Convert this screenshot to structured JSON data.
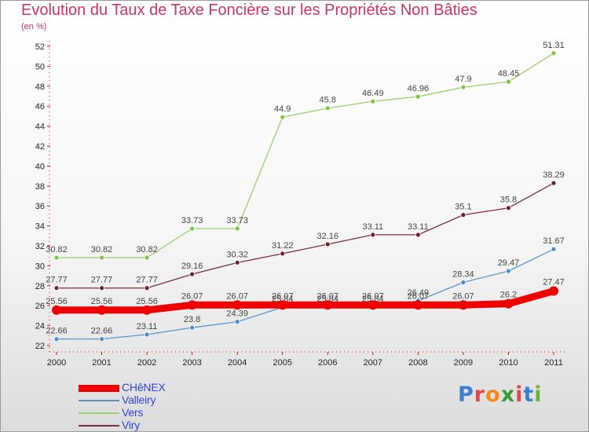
{
  "title": "Evolution du Taux de Taxe Foncière sur les Propriétés Non Bâties",
  "subtitle": "(en %)",
  "logo": {
    "text": "Proxiti",
    "letter_colors": [
      "#3a7fd0",
      "#e0484b",
      "#f28a1a",
      "#3a9a3c",
      "#e0484b",
      "#3a7fd0",
      "#6cb33e"
    ]
  },
  "chart_data": {
    "type": "line",
    "title": "Evolution du Taux de Taxe Foncière sur les Propriétés Non Bâties",
    "ylabel": "(en %)",
    "xlabel": "",
    "categories": [
      "2000",
      "2001",
      "2002",
      "2003",
      "2004",
      "2005",
      "2006",
      "2007",
      "2008",
      "2009",
      "2010",
      "2011"
    ],
    "ylim": [
      22,
      52
    ],
    "yticks": [
      22,
      24,
      26,
      28,
      30,
      32,
      34,
      36,
      38,
      40,
      42,
      44,
      46,
      48,
      50,
      52
    ],
    "grid": false,
    "legend_position": "bottom-left",
    "series": [
      {
        "name": "Valleiry",
        "color": "#5b93c9",
        "width": 1.3,
        "dot": "#4a8bd0",
        "values": [
          22.66,
          22.66,
          23.11,
          23.8,
          24.39,
          25.84,
          25.84,
          25.84,
          26.49,
          28.34,
          29.47,
          31.67
        ],
        "labels": [
          "22.66",
          "22.66",
          "23.11",
          "23.8",
          "24.39",
          "25.84",
          "25.84",
          "25.84",
          "26.49",
          "28.34",
          "29.47",
          "31.67"
        ]
      },
      {
        "name": "Vers",
        "color": "#9ad06a",
        "width": 1.3,
        "dot": "#7dc443",
        "values": [
          30.82,
          30.82,
          30.82,
          33.73,
          33.73,
          44.9,
          45.8,
          46.49,
          46.96,
          47.9,
          48.45,
          51.31
        ],
        "labels": [
          "30.82",
          "30.82",
          "30.82",
          "33.73",
          "33.73",
          "44.9",
          "45.8",
          "46.49",
          "46.96",
          "47.9",
          "48.45",
          "51.31"
        ]
      },
      {
        "name": "Viry",
        "color": "#7a2e3a",
        "width": 1.3,
        "dot": "#6b1f2a",
        "values": [
          27.77,
          27.77,
          27.77,
          29.16,
          30.32,
          31.22,
          32.16,
          33.11,
          33.11,
          35.1,
          35.8,
          38.29
        ],
        "labels": [
          "27.77",
          "27.77",
          "27.77",
          "29.16",
          "30.32",
          "31.22",
          "32.16",
          "33.11",
          "33.11",
          "35.1",
          "35.8",
          "38.29"
        ]
      },
      {
        "name": "CHêNEX",
        "color": "#ee0000",
        "width": 9,
        "dot": "#ee0000",
        "values": [
          25.56,
          25.56,
          25.56,
          26.07,
          26.07,
          26.07,
          26.07,
          26.07,
          26.07,
          26.07,
          26.2,
          27.47
        ],
        "labels": [
          "25.56",
          "25.56",
          "25.56",
          "26.07",
          "26.07",
          "26.07",
          "26.07",
          "26.07",
          "26.07",
          "26.07",
          "26.2",
          "27.47"
        ]
      }
    ],
    "legend_order": [
      "CHêNEX",
      "Valleiry",
      "Vers",
      "Viry"
    ]
  }
}
